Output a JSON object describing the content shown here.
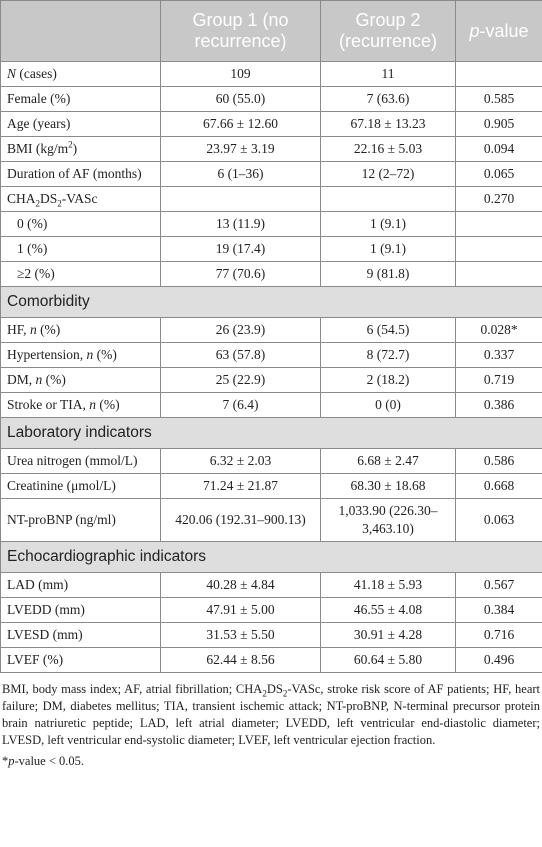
{
  "table": {
    "header": [
      null,
      "Group 1 (no recurrence)",
      "Group 2 (recurrence)",
      [
        {
          "text": "p",
          "style": "italic"
        },
        {
          "text": "-value"
        }
      ]
    ],
    "rows": [
      {
        "label": [
          {
            "text": "N",
            "style": "italic"
          },
          {
            "text": " (cases)"
          }
        ],
        "cells": [
          "109",
          "11",
          null
        ]
      },
      {
        "label": "Female (%)",
        "cells": [
          "60 (55.0)",
          "7 (63.6)",
          "0.585"
        ]
      },
      {
        "label": "Age (years)",
        "cells": [
          "67.66 ± 12.60",
          "67.18 ± 13.23",
          "0.905"
        ]
      },
      {
        "label": [
          {
            "text": "BMI (kg/m"
          },
          {
            "text": "2",
            "style": "sup"
          },
          {
            "text": ")"
          }
        ],
        "cells": [
          "23.97 ± 3.19",
          "22.16 ± 5.03",
          "0.094"
        ]
      },
      {
        "label": "Duration of AF (months)",
        "cells": [
          "6 (1–36)",
          "12 (2–72)",
          "0.065"
        ]
      },
      {
        "label": [
          {
            "text": "CHA"
          },
          {
            "text": "2",
            "style": "sub"
          },
          {
            "text": "DS"
          },
          {
            "text": "2",
            "style": "sub"
          },
          {
            "text": "-VASc"
          }
        ],
        "cells": [
          null,
          null,
          "0.270"
        ]
      },
      {
        "label": "0 (%)",
        "indent": true,
        "cells": [
          "13 (11.9)",
          "1 (9.1)",
          null
        ]
      },
      {
        "label": "1 (%)",
        "indent": true,
        "cells": [
          "19 (17.4)",
          "1 (9.1)",
          null
        ]
      },
      {
        "label": "≥2 (%)",
        "indent": true,
        "cells": [
          "77 (70.6)",
          "9 (81.8)",
          null
        ]
      },
      {
        "section": "Comorbidity"
      },
      {
        "label": [
          {
            "text": "HF, "
          },
          {
            "text": "n",
            "style": "italic"
          },
          {
            "text": " (%)"
          }
        ],
        "cells": [
          "26 (23.9)",
          "6 (54.5)",
          "0.028*"
        ]
      },
      {
        "label": [
          {
            "text": "Hypertension, "
          },
          {
            "text": "n",
            "style": "italic"
          },
          {
            "text": " (%)"
          }
        ],
        "cells": [
          "63 (57.8)",
          "8 (72.7)",
          "0.337"
        ]
      },
      {
        "label": [
          {
            "text": "DM, "
          },
          {
            "text": "n",
            "style": "italic"
          },
          {
            "text": " (%)"
          }
        ],
        "cells": [
          "25 (22.9)",
          "2 (18.2)",
          "0.719"
        ]
      },
      {
        "label": [
          {
            "text": "Stroke or TIA, "
          },
          {
            "text": "n",
            "style": "italic"
          },
          {
            "text": " (%)"
          }
        ],
        "cells": [
          "7 (6.4)",
          "0 (0)",
          "0.386"
        ]
      },
      {
        "section": "Laboratory indicators"
      },
      {
        "label": "Urea nitrogen (mmol/L)",
        "cells": [
          "6.32 ± 2.03",
          "6.68 ± 2.47",
          "0.586"
        ]
      },
      {
        "label": "Creatinine (μmol/L)",
        "cells": [
          "71.24 ± 21.87",
          "68.30 ± 18.68",
          "0.668"
        ]
      },
      {
        "label": "NT-proBNP (ng/ml)",
        "cells": [
          "420.06 (192.31–900.13)",
          "1,033.90 (226.30–3,463.10)",
          "0.063"
        ]
      },
      {
        "section": "Echocardiographic indicators"
      },
      {
        "label": "LAD (mm)",
        "cells": [
          "40.28 ± 4.84",
          "41.18 ± 5.93",
          "0.567"
        ]
      },
      {
        "label": "LVEDD (mm)",
        "cells": [
          "47.91 ± 5.00",
          "46.55 ± 4.08",
          "0.384"
        ]
      },
      {
        "label": "LVESD (mm)",
        "cells": [
          "31.53 ± 5.50",
          "30.91 ± 4.28",
          "0.716"
        ]
      },
      {
        "label": "LVEF (%)",
        "cells": [
          "62.44 ± 8.56",
          "60.64 ± 5.80",
          "0.496"
        ]
      }
    ],
    "footnotes": [
      [
        {
          "text": "BMI, body mass index; AF, atrial fibrillation; CHA"
        },
        {
          "text": "2",
          "style": "sub"
        },
        {
          "text": "DS"
        },
        {
          "text": "2",
          "style": "sub"
        },
        {
          "text": "-VASc, stroke risk score of AF patients; HF, heart failure; DM, diabetes mellitus; TIA, transient ischemic attack; NT-proBNP, N-terminal precursor protein brain natriuretic peptide; LAD, left atrial diameter; LVEDD, left ventricular end-diastolic diameter; LVESD, left ventricular end-systolic diameter; LVEF, left ventricular ejection fraction."
        }
      ],
      [
        {
          "text": "*"
        },
        {
          "text": "p",
          "style": "italic"
        },
        {
          "text": "-value < 0.05."
        }
      ]
    ]
  }
}
